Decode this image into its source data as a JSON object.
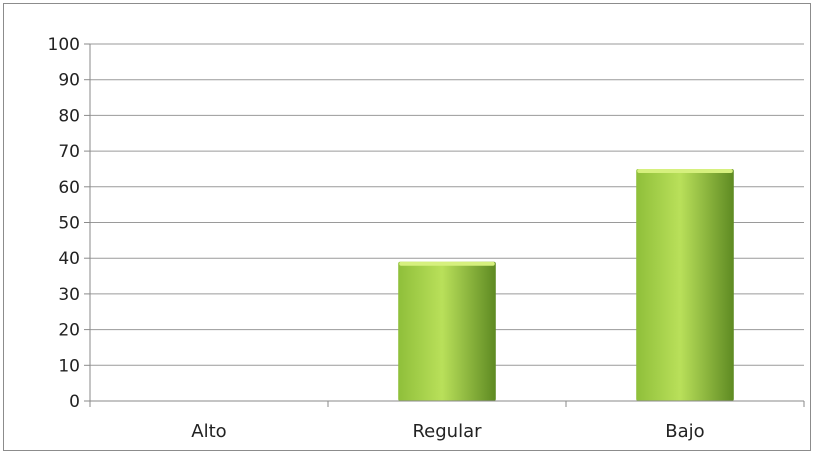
{
  "chart_data": {
    "type": "bar",
    "categories": [
      "Alto",
      "Regular",
      "Bajo"
    ],
    "values": [
      0,
      39,
      65
    ],
    "ylim": [
      0,
      100
    ],
    "yticks": [
      0,
      10,
      20,
      30,
      40,
      50,
      60,
      70,
      80,
      90,
      100
    ],
    "title": "",
    "xlabel": "",
    "ylabel": "",
    "grid": true,
    "legend": "none",
    "colors": {
      "bar_light": "#b9e05a",
      "bar_mid": "#8fbf3a",
      "bar_dark": "#5e8a22",
      "bar_top": "#d6f07e"
    }
  }
}
